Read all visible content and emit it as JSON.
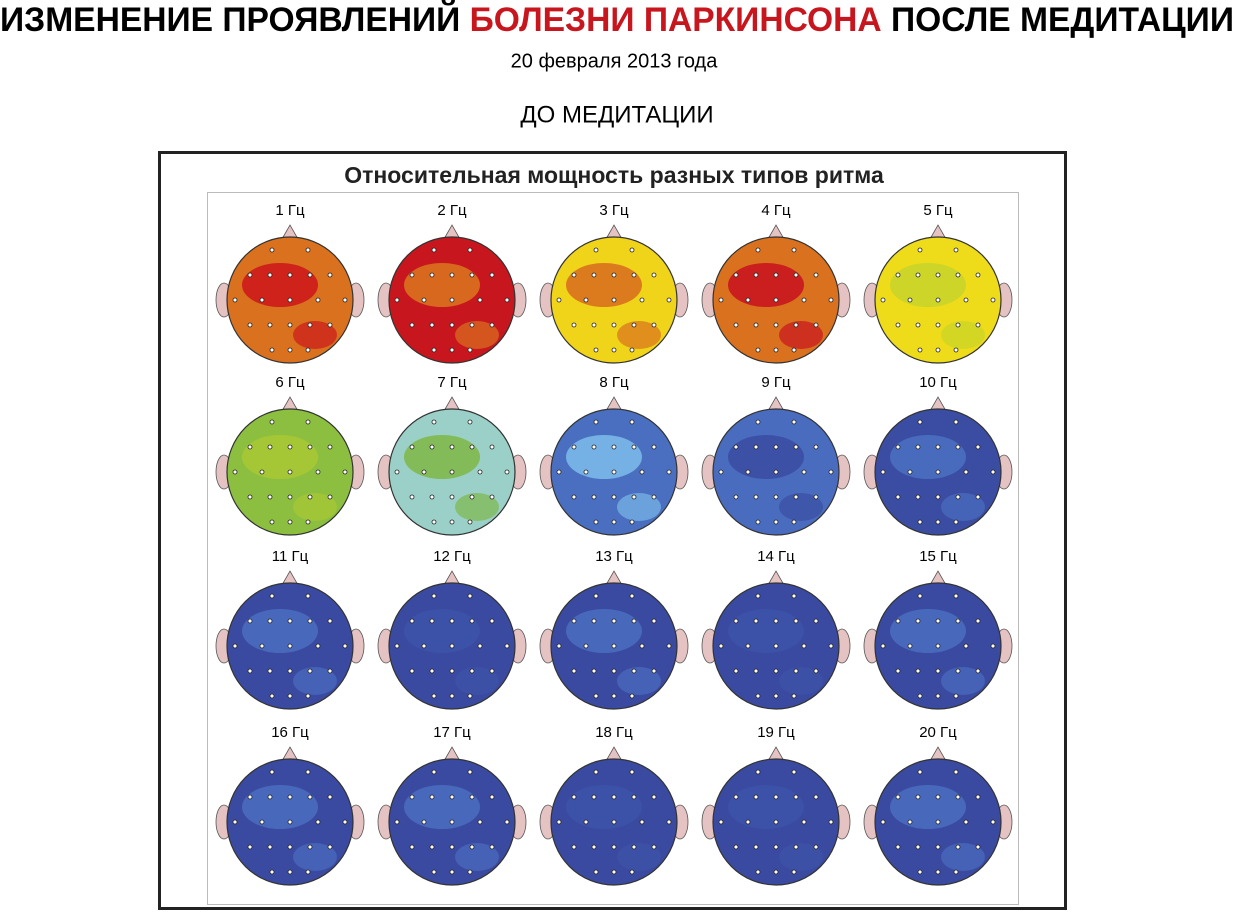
{
  "header": {
    "title_start": "ИЗМЕНЕНИЕ ПРОЯВЛЕНИЙ ",
    "title_highlight": "БОЛЕЗНИ ПАРКИНСОНА",
    "title_end": " ПОСЛЕ МЕДИТАЦИИ",
    "date": "20 февраля 2013 года",
    "subtitle": "ДО МЕДИТАЦИИ"
  },
  "panel": {
    "title": "Относительная мощность разных типов ритма",
    "heads": [
      {
        "label": "1 Гц",
        "color": "#d9711e",
        "accent": "#cc1a1a"
      },
      {
        "label": "2 Гц",
        "color": "#c8161e",
        "accent": "#d9711e"
      },
      {
        "label": "3 Гц",
        "color": "#f0d419",
        "accent": "#d9711e"
      },
      {
        "label": "4 Гц",
        "color": "#d9711e",
        "accent": "#c8161e"
      },
      {
        "label": "5 Гц",
        "color": "#eedc1a",
        "accent": "#c8d42a"
      },
      {
        "label": "6 Гц",
        "color": "#8cbf3f",
        "accent": "#a8c834"
      },
      {
        "label": "7 Гц",
        "color": "#9ad0c8",
        "accent": "#7fb84a"
      },
      {
        "label": "8 Гц",
        "color": "#4a6fc0",
        "accent": "#7ab8e8"
      },
      {
        "label": "9 Гц",
        "color": "#4a6cbf",
        "accent": "#3b4ea3"
      },
      {
        "label": "10 Гц",
        "color": "#3b4ca3",
        "accent": "#4a6fc0"
      },
      {
        "label": "11 Гц",
        "color": "#3a4aa0",
        "accent": "#4a6cbf"
      },
      {
        "label": "12 Гц",
        "color": "#3a4aa0",
        "accent": "#3d52a8"
      },
      {
        "label": "13 Гц",
        "color": "#3a4aa0",
        "accent": "#4a6cbf"
      },
      {
        "label": "14 Гц",
        "color": "#3a4aa0",
        "accent": "#3d52a8"
      },
      {
        "label": "15 Гц",
        "color": "#3a4aa0",
        "accent": "#4a6cbf"
      },
      {
        "label": "16 Гц",
        "color": "#3a4aa0",
        "accent": "#4a6cbf"
      },
      {
        "label": "17 Гц",
        "color": "#3a4aa0",
        "accent": "#4a6cbf"
      },
      {
        "label": "18 Гц",
        "color": "#3a4aa0",
        "accent": "#3d52a8"
      },
      {
        "label": "19 Гц",
        "color": "#3a4aa0",
        "accent": "#3d52a8"
      },
      {
        "label": "20 Гц",
        "color": "#3a4aa0",
        "accent": "#4a6cbf"
      }
    ]
  }
}
